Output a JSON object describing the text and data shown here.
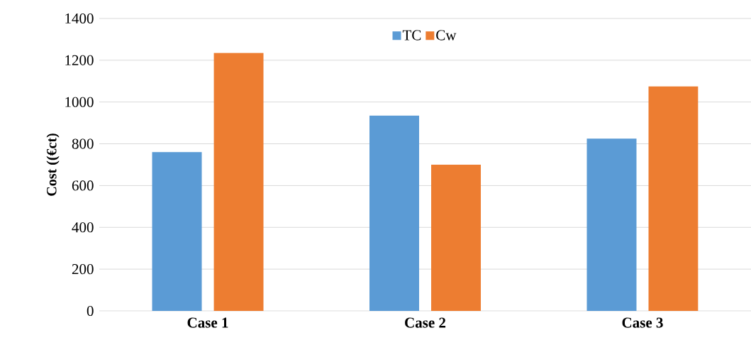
{
  "chart_data": {
    "type": "bar",
    "ylabel": "Cost ((€ct)",
    "categories": [
      "Case 1",
      "Case 2",
      "Case 3"
    ],
    "series": [
      {
        "name": "TC",
        "color": "#5b9bd5",
        "values": [
          760,
          935,
          825
        ]
      },
      {
        "name": "Cw",
        "color": "#ed7d31",
        "values": [
          1235,
          700,
          1075
        ]
      }
    ],
    "ylim": [
      0,
      1400
    ],
    "yticks": [
      0,
      200,
      400,
      600,
      800,
      1000,
      1200,
      1400
    ],
    "grid": "y",
    "legend": "top"
  }
}
